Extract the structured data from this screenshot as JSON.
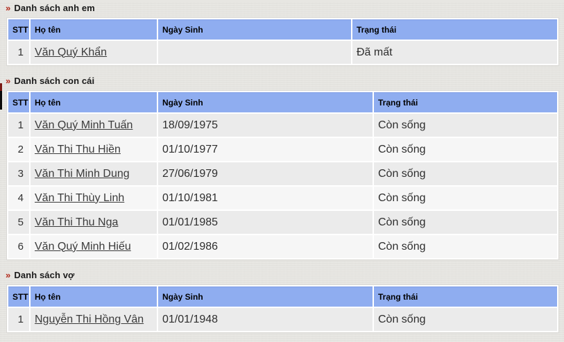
{
  "colors": {
    "page_background": "#e7e6e2",
    "table_header_bg": "#8fadf0",
    "accent_red_bullet": "#b22a1b",
    "row_odd_bg": "#ebebeb",
    "row_even_bg": "#f6f6f6",
    "link_color": "#3b3b3b"
  },
  "sections": [
    {
      "id": "anh-em",
      "bullet": "»",
      "title": "Danh sách anh em",
      "columns": [
        "STT",
        "Họ tên",
        "Ngày Sinh",
        "Trạng thái"
      ],
      "rows": [
        {
          "stt": "1",
          "name": "Văn Quý Khẩn",
          "dob": "",
          "status": "Đã mất"
        }
      ]
    },
    {
      "id": "con-cai",
      "bullet": "»",
      "title": "Danh sách con cái",
      "columns": [
        "STT",
        "Họ tên",
        "Ngày Sinh",
        "Trạng thái"
      ],
      "rows": [
        {
          "stt": "1",
          "name": "Văn Quý Minh Tuấn",
          "dob": "18/09/1975",
          "status": "Còn sống"
        },
        {
          "stt": "2",
          "name": "Văn Thi Thu Hiền",
          "dob": "01/10/1977",
          "status": "Còn sống"
        },
        {
          "stt": "3",
          "name": "Văn Thi Minh Dung",
          "dob": "27/06/1979",
          "status": "Còn sống"
        },
        {
          "stt": "4",
          "name": "Văn Thi Thùy Linh",
          "dob": "01/10/1981",
          "status": "Còn sống"
        },
        {
          "stt": "5",
          "name": "Văn Thi Thu Nga",
          "dob": "01/01/1985",
          "status": "Còn sống"
        },
        {
          "stt": "6",
          "name": "Văn Quý Minh Hiếu",
          "dob": "01/02/1986",
          "status": "Còn sống"
        }
      ]
    },
    {
      "id": "vo",
      "bullet": "»",
      "title": "Danh sách vợ",
      "columns": [
        "STT",
        "Họ tên",
        "Ngày Sinh",
        "Trạng thái"
      ],
      "rows": [
        {
          "stt": "1",
          "name": "Nguyễn Thi Hồng Vân",
          "dob": "01/01/1948",
          "status": "Còn sống"
        }
      ]
    }
  ]
}
